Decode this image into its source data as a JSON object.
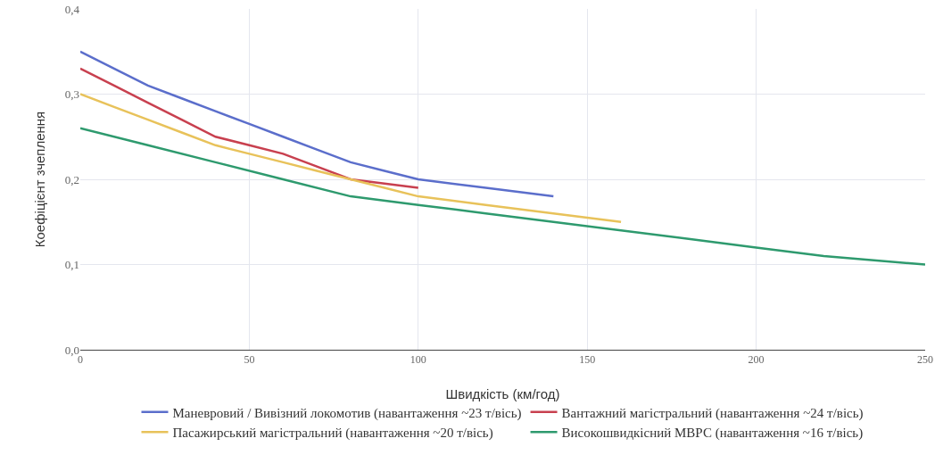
{
  "chart_data": {
    "type": "line",
    "xlabel": "Швидкість (км/год)",
    "ylabel": "Коефіцієнт зчеплення",
    "xlim": [
      0,
      250
    ],
    "xticks": [
      0,
      50,
      100,
      150,
      200,
      250
    ],
    "ylim": [
      0,
      0.4
    ],
    "yticks": [
      {
        "value": 0,
        "label": "0,0"
      },
      {
        "value": 0.1,
        "label": "0,1"
      },
      {
        "value": 0.2,
        "label": "0,2"
      },
      {
        "value": 0.3,
        "label": "0,3"
      },
      {
        "value": 0.4,
        "label": "0,4"
      }
    ],
    "grid": true,
    "legend": "bottom",
    "marker": "none",
    "line_style": "solid",
    "series": [
      {
        "name": "Маневровий / Вивізний локомотив (навантаження ~23 т/вісь)",
        "color": "#5b6ecb",
        "x": [
          0,
          10,
          20,
          30,
          40,
          50,
          60,
          70,
          80,
          90,
          100,
          120,
          140
        ],
        "values": [
          0.35,
          0.33,
          0.31,
          0.295,
          0.28,
          0.265,
          0.25,
          0.235,
          0.22,
          0.21,
          0.2,
          0.19,
          0.18
        ]
      },
      {
        "name": "Вантажний магістральний (навантаження ~24 т/вісь)",
        "color": "#c8404f",
        "x": [
          0,
          10,
          20,
          30,
          40,
          50,
          60,
          70,
          80,
          90,
          100
        ],
        "values": [
          0.33,
          0.31,
          0.29,
          0.27,
          0.25,
          0.24,
          0.23,
          0.215,
          0.2,
          0.195,
          0.19
        ]
      },
      {
        "name": "Пасажирський магістральний (навантаження ~20 т/вісь)",
        "color": "#e8c25a",
        "x": [
          0,
          10,
          20,
          30,
          40,
          50,
          60,
          70,
          80,
          90,
          100,
          120,
          140,
          160
        ],
        "values": [
          0.3,
          0.285,
          0.27,
          0.255,
          0.24,
          0.23,
          0.22,
          0.21,
          0.2,
          0.19,
          0.18,
          0.17,
          0.16,
          0.15
        ]
      },
      {
        "name": "Високошвидкісний МВРС (навантаження ~16 т/вісь)",
        "color": "#2e9a6e",
        "x": [
          0,
          20,
          40,
          60,
          80,
          100,
          120,
          140,
          160,
          180,
          200,
          220,
          250
        ],
        "values": [
          0.26,
          0.24,
          0.22,
          0.2,
          0.18,
          0.17,
          0.16,
          0.15,
          0.14,
          0.13,
          0.12,
          0.11,
          0.1
        ]
      }
    ]
  }
}
